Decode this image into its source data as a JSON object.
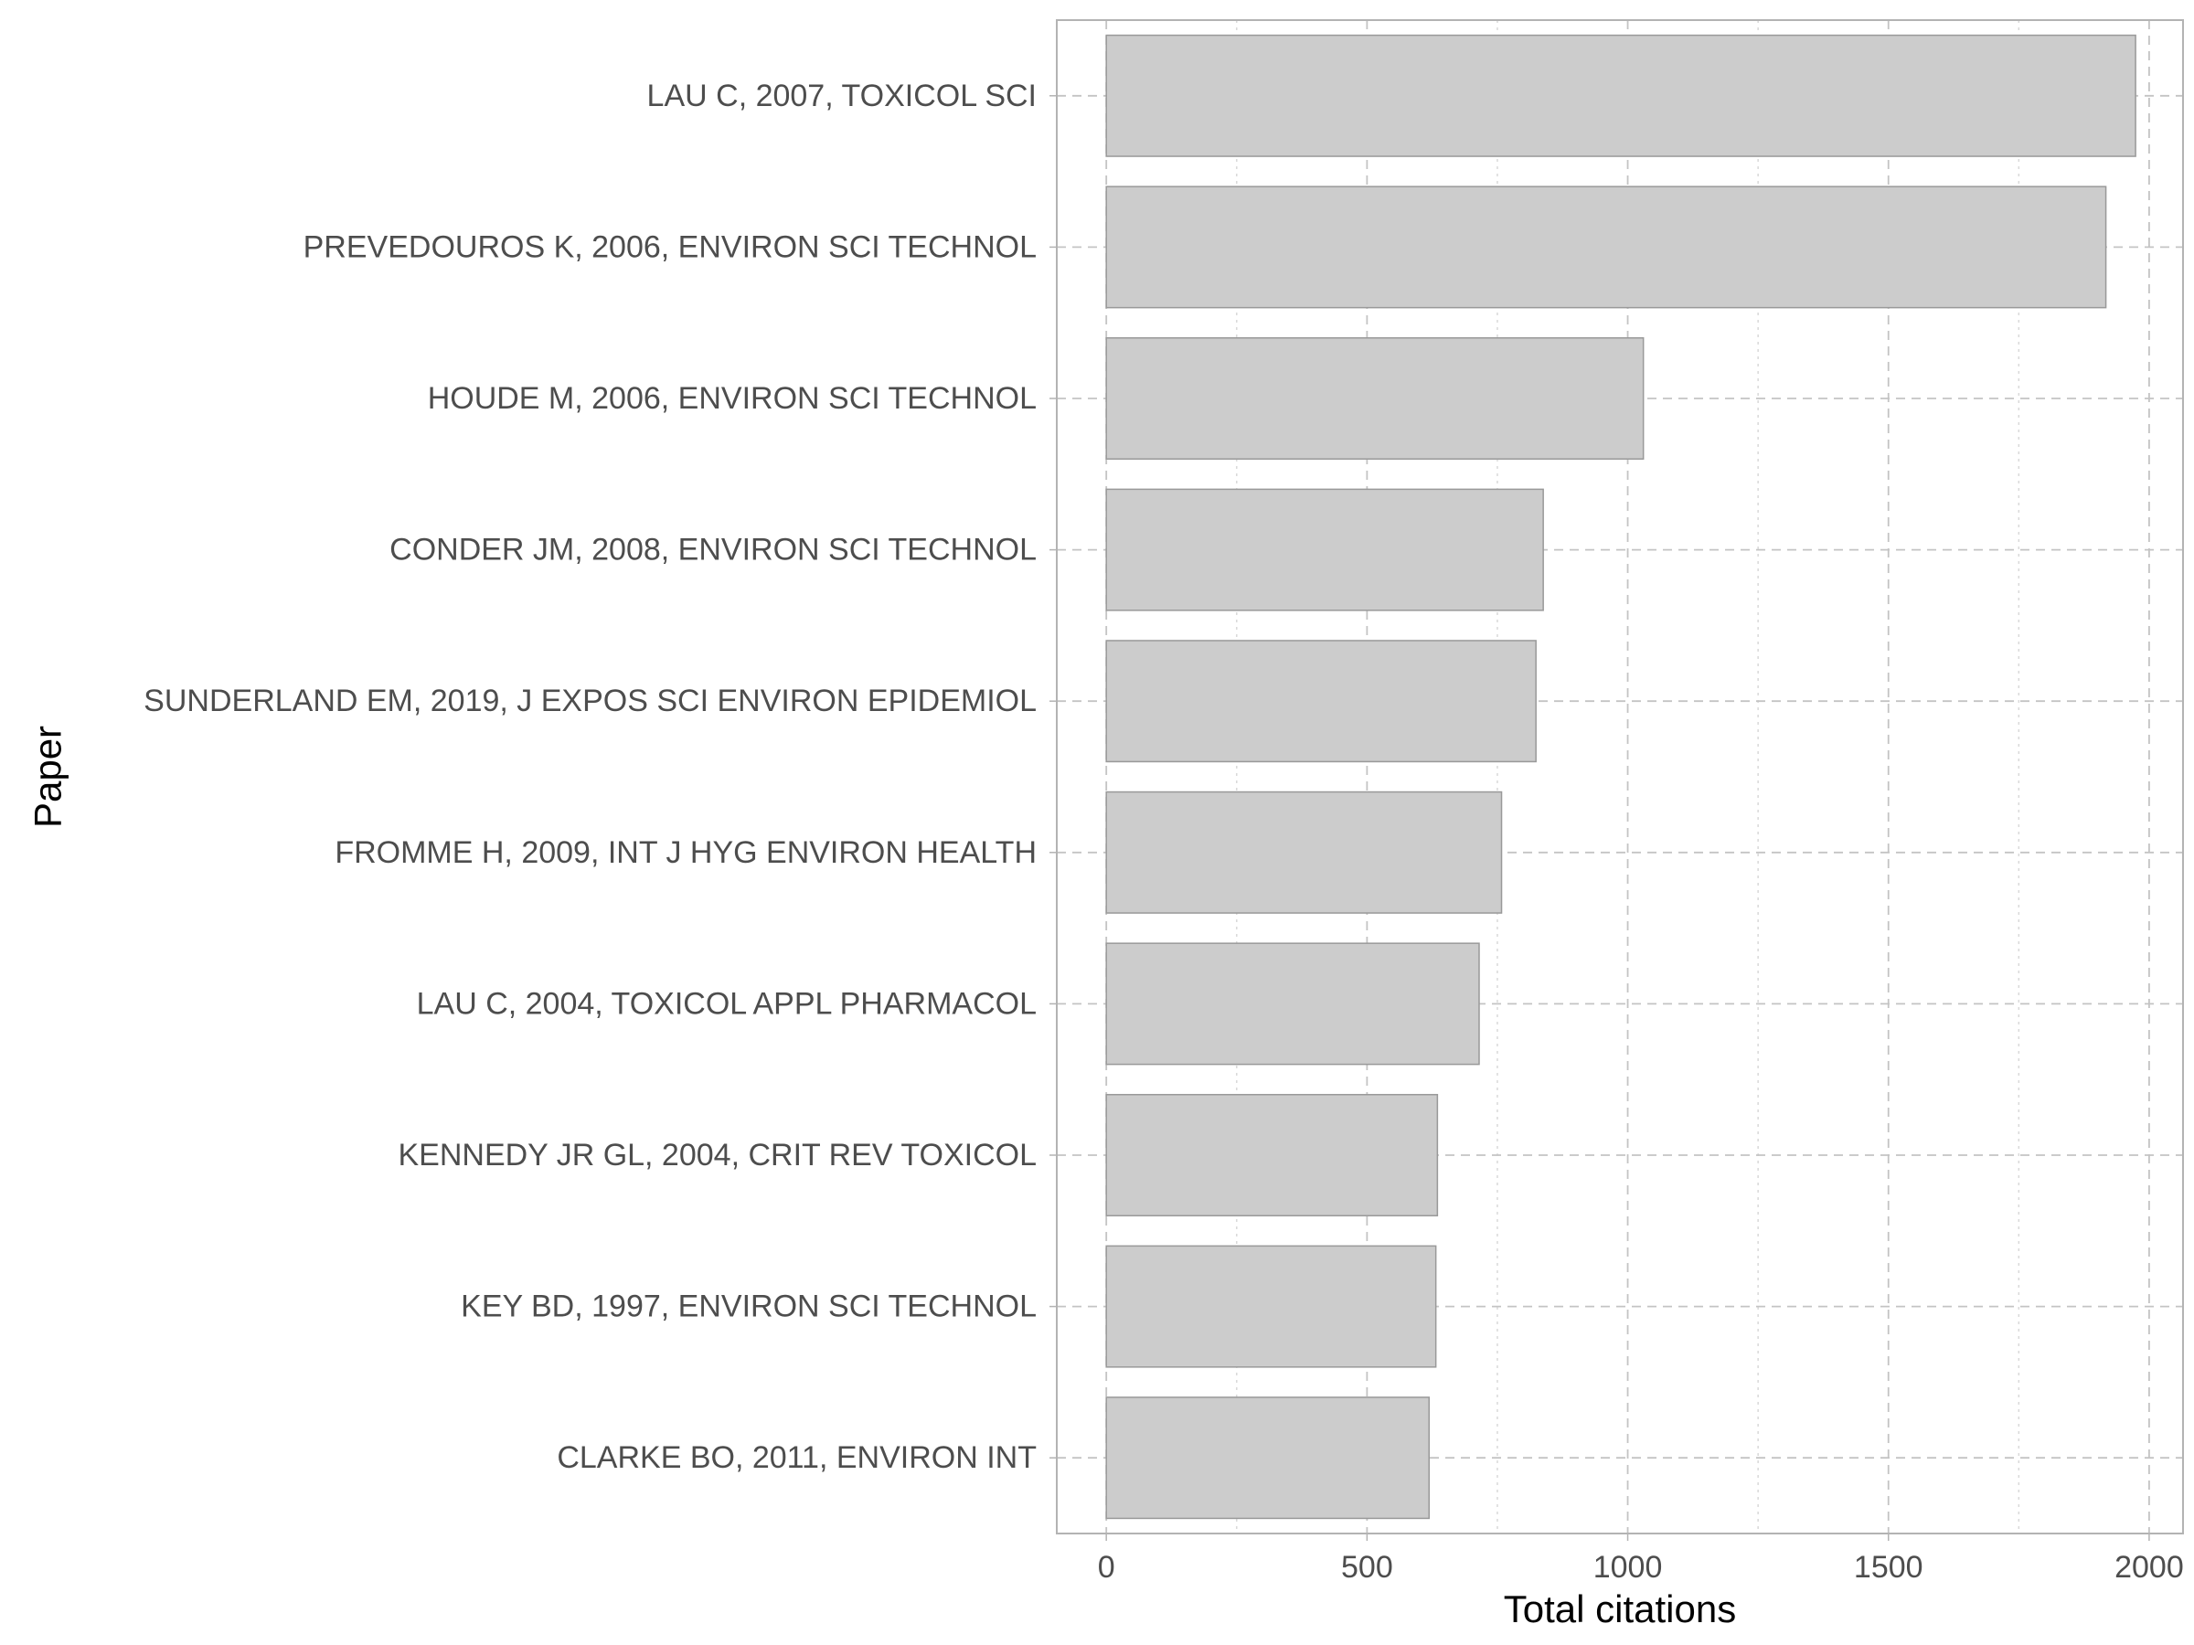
{
  "chart_data": {
    "type": "bar",
    "orientation": "horizontal",
    "title": "",
    "xlabel": "Total citations",
    "ylabel": "Paper",
    "xlim": [
      -95,
      2065
    ],
    "xticks": [
      0,
      500,
      1000,
      1500,
      2000
    ],
    "grid": true,
    "legend": "none",
    "bar_color": "#cccccc",
    "bar_edge_color": "#999999",
    "categories": [
      "LAU C, 2007, TOXICOL SCI",
      "PREVEDOUROS K, 2006, ENVIRON SCI TECHNOL",
      "HOUDE M, 2006, ENVIRON SCI TECHNOL",
      "CONDER JM, 2008, ENVIRON SCI TECHNOL",
      "SUNDERLAND EM, 2019, J EXPOS SCI ENVIRON EPIDEMIOL",
      "FROMME H, 2009, INT J HYG ENVIRON HEALTH",
      "LAU C, 2004, TOXICOL APPL PHARMACOL",
      "KENNEDY JR GL, 2004, CRIT REV TOXICOL",
      "KEY BD, 1997, ENVIRON SCI TECHNOL",
      "CLARKE BO, 2011, ENVIRON INT"
    ],
    "values": [
      1974,
      1917,
      1030,
      838,
      824,
      758,
      715,
      635,
      632,
      619
    ]
  }
}
